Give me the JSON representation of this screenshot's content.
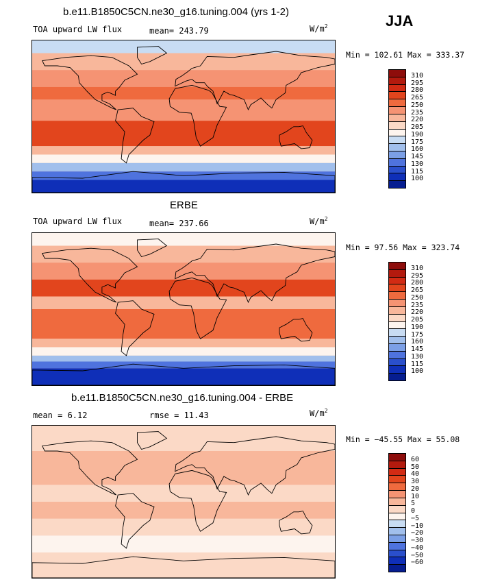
{
  "season": "JJA",
  "panels": [
    {
      "id": "model",
      "title": "b.e11.B1850C5CN.ne30_g16.tuning.004 (yrs 1-2)",
      "variable": "TOA upward LW flux",
      "stat1": "mean= 243.79",
      "stat2": "",
      "units": "W/m",
      "units_exp": "2",
      "minmax": "Min = 102.61 Max = 333.37",
      "colorbar": {
        "labels": [
          "310",
          "295",
          "280",
          "265",
          "250",
          "235",
          "220",
          "205",
          "190",
          "175",
          "160",
          "145",
          "130",
          "115",
          "100"
        ],
        "colors": [
          "#8e0d0b",
          "#b31a0e",
          "#d22b14",
          "#e2451d",
          "#ef6a3e",
          "#f59373",
          "#f8b79b",
          "#fbd9c6",
          "#fdf4ee",
          "#c8dcf3",
          "#a1bfec",
          "#7b9fe6",
          "#4f73de",
          "#2a4fcc",
          "#0f2fb8",
          "#061d90"
        ],
        "map_bands": [
          {
            "lat": [
              75,
              90
            ],
            "color": "#c8dcf3"
          },
          {
            "lat": [
              55,
              75
            ],
            "color": "#f8b79b"
          },
          {
            "lat": [
              35,
              55
            ],
            "color": "#f59373"
          },
          {
            "lat": [
              20,
              35
            ],
            "color": "#ef6a3e"
          },
          {
            "lat": [
              -5,
              20
            ],
            "color": "#f59373"
          },
          {
            "lat": [
              -35,
              -5
            ],
            "color": "#e2451d"
          },
          {
            "lat": [
              -45,
              -35
            ],
            "color": "#f8b79b"
          },
          {
            "lat": [
              -55,
              -45
            ],
            "color": "#fdf4ee"
          },
          {
            "lat": [
              -65,
              -55
            ],
            "color": "#a1bfec"
          },
          {
            "lat": [
              -75,
              -65
            ],
            "color": "#4f73de"
          },
          {
            "lat": [
              -90,
              -75
            ],
            "color": "#0f2fb8"
          }
        ]
      }
    },
    {
      "id": "obs",
      "title": "ERBE",
      "variable": "TOA upward LW flux",
      "stat1": "mean= 237.66",
      "stat2": "",
      "units": "W/m",
      "units_exp": "2",
      "minmax": "Min =  97.56 Max = 323.74",
      "colorbar": {
        "labels": [
          "310",
          "295",
          "280",
          "265",
          "250",
          "235",
          "220",
          "205",
          "190",
          "175",
          "160",
          "145",
          "130",
          "115",
          "100"
        ],
        "colors": [
          "#8e0d0b",
          "#b31a0e",
          "#d22b14",
          "#e2451d",
          "#ef6a3e",
          "#f59373",
          "#f8b79b",
          "#fbd9c6",
          "#fdf4ee",
          "#c8dcf3",
          "#a1bfec",
          "#7b9fe6",
          "#4f73de",
          "#2a4fcc",
          "#0f2fb8",
          "#061d90"
        ],
        "map_bands": [
          {
            "lat": [
              75,
              90
            ],
            "color": "#fdf4ee"
          },
          {
            "lat": [
              55,
              75
            ],
            "color": "#f8b79b"
          },
          {
            "lat": [
              35,
              55
            ],
            "color": "#f59373"
          },
          {
            "lat": [
              15,
              35
            ],
            "color": "#e2451d"
          },
          {
            "lat": [
              0,
              15
            ],
            "color": "#f8b79b"
          },
          {
            "lat": [
              -35,
              0
            ],
            "color": "#ef6a3e"
          },
          {
            "lat": [
              -45,
              -35
            ],
            "color": "#f8b79b"
          },
          {
            "lat": [
              -55,
              -45
            ],
            "color": "#fdf4ee"
          },
          {
            "lat": [
              -62,
              -55
            ],
            "color": "#a1bfec"
          },
          {
            "lat": [
              -70,
              -62
            ],
            "color": "#4f73de"
          },
          {
            "lat": [
              -90,
              -70
            ],
            "color": "#0f2fb8"
          }
        ]
      }
    },
    {
      "id": "diff",
      "title": "b.e11.B1850C5CN.ne30_g16.tuning.004 - ERBE",
      "variable": "",
      "stat1": "mean =    6.12",
      "stat2": "rmse =   11.43",
      "units": "W/m",
      "units_exp": "2",
      "minmax": "Min = −45.55 Max =  55.08",
      "colorbar": {
        "labels": [
          "60",
          "50",
          "40",
          "30",
          "20",
          "10",
          "5",
          "0",
          "−5",
          "−10",
          "−20",
          "−30",
          "−40",
          "−50",
          "−60"
        ],
        "colors": [
          "#8e0d0b",
          "#b31a0e",
          "#d22b14",
          "#e2451d",
          "#ef6a3e",
          "#f59373",
          "#f8b79b",
          "#fbd9c6",
          "#fdf4ee",
          "#c8dcf3",
          "#a1bfec",
          "#7b9fe6",
          "#4f73de",
          "#2a4fcc",
          "#0f2fb8",
          "#061d90"
        ],
        "map_bands": [
          {
            "lat": [
              60,
              90
            ],
            "color": "#fbd9c6"
          },
          {
            "lat": [
              20,
              60
            ],
            "color": "#f8b79b"
          },
          {
            "lat": [
              0,
              20
            ],
            "color": "#fbd9c6"
          },
          {
            "lat": [
              -20,
              0
            ],
            "color": "#f8b79b"
          },
          {
            "lat": [
              -40,
              -20
            ],
            "color": "#fbd9c6"
          },
          {
            "lat": [
              -60,
              -40
            ],
            "color": "#fdf4ee"
          },
          {
            "lat": [
              -90,
              -60
            ],
            "color": "#fbd9c6"
          }
        ]
      }
    }
  ]
}
